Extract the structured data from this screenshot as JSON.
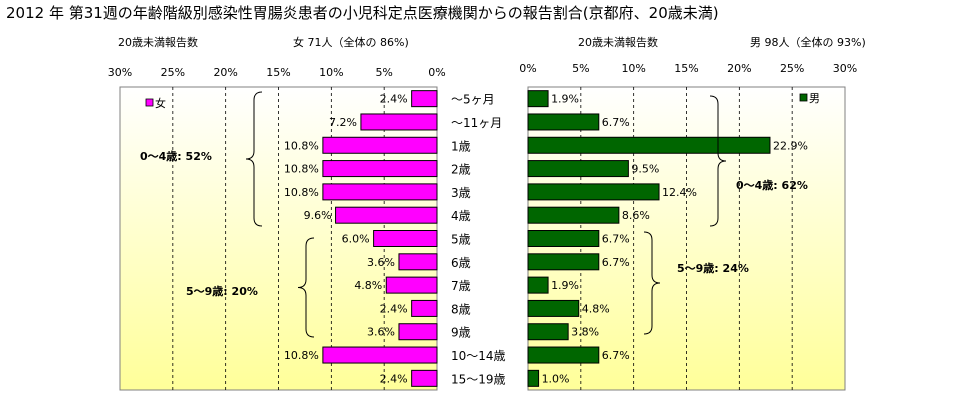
{
  "title": "2012 年 第31週の年齢階級別感染性胃腸炎患者の小児科定点医療機関からの報告割合(京都府、20歳未満)",
  "left_header": {
    "label": "20歳未満報告数",
    "info": "女 71人（全体の 86%)"
  },
  "right_header": {
    "label": "20歳未満報告数",
    "info": "男 98人（全体の 93%)"
  },
  "colors": {
    "female": "#ff00ff",
    "male": "#006600",
    "plot_gradient_top": "#ffffff",
    "plot_gradient_bottom": "#ffff99",
    "bar_border": "#000000"
  },
  "chart_data": [
    {
      "type": "bar",
      "orientation": "horizontal",
      "direction": "right-to-left",
      "categories": [
        "〜5ヶ月",
        "〜11ヶ月",
        "1歳",
        "2歳",
        "3歳",
        "4歳",
        "5歳",
        "6歳",
        "7歳",
        "8歳",
        "9歳",
        "10〜14歳",
        "15〜19歳"
      ],
      "series": [
        {
          "name": "女",
          "values": [
            2.4,
            7.2,
            10.8,
            10.8,
            10.8,
            9.6,
            6.0,
            3.6,
            4.8,
            2.4,
            3.6,
            10.8,
            2.4
          ]
        }
      ],
      "value_labels": [
        "2.4%",
        "7.2%",
        "10.8%",
        "10.8%",
        "10.8%",
        "9.6%",
        "6.0%",
        "3.6%",
        "4.8%",
        "2.4%",
        "3.6%",
        "10.8%",
        "2.4%"
      ],
      "xlim": [
        0,
        30
      ],
      "xticks": [
        "30%",
        "25%",
        "20%",
        "15%",
        "10%",
        "5%",
        "0%"
      ],
      "grid": true,
      "legend": "top-left",
      "annotations": [
        "0〜4歳: 52%",
        "5〜9歳: 20%"
      ]
    },
    {
      "type": "bar",
      "orientation": "horizontal",
      "direction": "left-to-right",
      "categories": [
        "〜5ヶ月",
        "〜11ヶ月",
        "1歳",
        "2歳",
        "3歳",
        "4歳",
        "5歳",
        "6歳",
        "7歳",
        "8歳",
        "9歳",
        "10〜14歳",
        "15〜19歳"
      ],
      "series": [
        {
          "name": "男",
          "values": [
            1.9,
            6.7,
            22.9,
            9.5,
            12.4,
            8.6,
            6.7,
            6.7,
            1.9,
            4.8,
            3.8,
            6.7,
            1.0
          ]
        }
      ],
      "value_labels": [
        "1.9%",
        "6.7%",
        "22.9%",
        "9.5%",
        "12.4%",
        "8.6%",
        "6.7%",
        "6.7%",
        "1.9%",
        "4.8%",
        "3.8%",
        "6.7%",
        "1.0%"
      ],
      "xlim": [
        0,
        30
      ],
      "xticks": [
        "0%",
        "5%",
        "10%",
        "15%",
        "20%",
        "25%",
        "30%"
      ],
      "grid": true,
      "legend": "top-right",
      "annotations": [
        "0〜4歳: 62%",
        "5〜9歳: 24%"
      ]
    }
  ]
}
